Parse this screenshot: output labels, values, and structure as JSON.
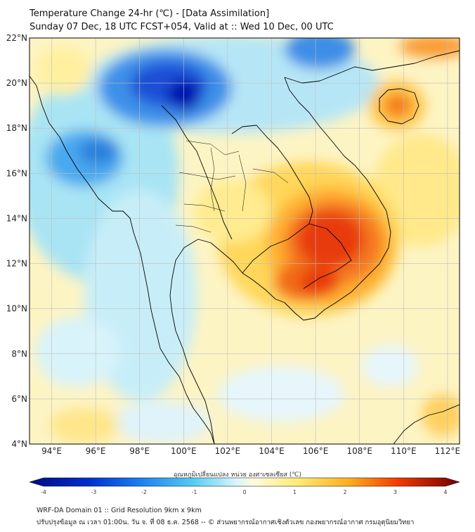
{
  "title": {
    "line1": "Temperature Change 24-hr (℃) - [Data Assimilation]",
    "line2": "Sunday 07 Dec, 18 UTC FCST+054, Valid at :: Wed 10 Dec, 00 UTC"
  },
  "axes": {
    "lat_labels": [
      "22°N",
      "20°N",
      "18°N",
      "16°N",
      "14°N",
      "12°N",
      "10°N",
      "8°N",
      "6°N",
      "4°N"
    ],
    "lon_labels": [
      "94°E",
      "96°E",
      "98°E",
      "100°E",
      "102°E",
      "104°E",
      "106°E",
      "108°E",
      "110°E",
      "112°E"
    ]
  },
  "colorbar": {
    "title": "อุณหภูมิเปลี่ยนแปลง หน่วย องศาเซลเซียส (℃)",
    "min": -4,
    "max": 4,
    "ticks": [
      "-4",
      "-3",
      "-2",
      "-1",
      "0",
      "1",
      "2",
      "3",
      "4"
    ]
  },
  "footer": {
    "line1": "WRF-DA Domain 01 :: Grid Resolution 9km x 9km",
    "line2": "ปรับปรุงข้อมูล ณ เวลา 01:00น. วัน จ. ที่ 08 ธ.ค. 2568 -- © ส่วนพยากรณ์อากาศเชิงตัวเลข กองพยากรณ์อากาศ กรมอุตุนิยมวิทยา"
  },
  "colors": {
    "cold_dark": "#0010a8",
    "cold": "#1e78e6",
    "cool_light": "#8fdcf5",
    "neutral": "#ffffff",
    "warm_light": "#fff5b0",
    "warm": "#ffb31a",
    "hot": "#e61a00",
    "hot_dark": "#7a0000",
    "coastline": "#000000",
    "grid": "#bdbdbd"
  }
}
